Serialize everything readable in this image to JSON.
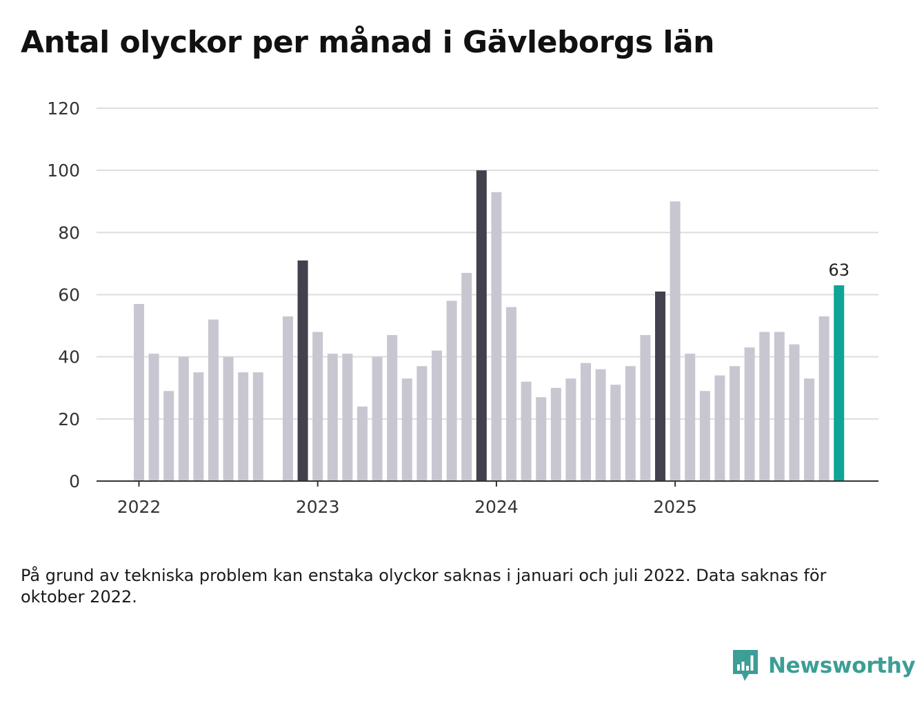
{
  "title": "Antal olyckor per månad i Gävleborgs län",
  "note": "På grund av tekniska problem kan enstaka olyckor saknas i januari och juli 2022. Data saknas för oktober 2022.",
  "brand": {
    "name": "Newsworthy",
    "icon": "newsworthy-logo-icon",
    "color": "#3c9e95"
  },
  "colors": {
    "bar": "#c8c7d1",
    "december": "#42414d",
    "latest": "#0fa596",
    "grid": "#dddddd",
    "axis": "#333333"
  },
  "chart_data": {
    "type": "bar",
    "title": "Antal olyckor per månad i Gävleborgs län",
    "xlabel": "",
    "ylabel": "",
    "ylim": [
      0,
      120
    ],
    "yticks": [
      "0",
      "20",
      "40",
      "60",
      "80",
      "100",
      "120"
    ],
    "x_tick_labels": [
      {
        "label": "2022",
        "index": 0
      },
      {
        "label": "2023",
        "index": 12
      },
      {
        "label": "2024",
        "index": 24
      },
      {
        "label": "2025",
        "index": 36
      }
    ],
    "highlight_label": "63",
    "categories": [
      "2022-01",
      "2022-02",
      "2022-03",
      "2022-04",
      "2022-05",
      "2022-06",
      "2022-07",
      "2022-08",
      "2022-09",
      "2022-10",
      "2022-11",
      "2022-12",
      "2023-01",
      "2023-02",
      "2023-03",
      "2023-04",
      "2023-05",
      "2023-06",
      "2023-07",
      "2023-08",
      "2023-09",
      "2023-10",
      "2023-11",
      "2023-12",
      "2024-01",
      "2024-02",
      "2024-03",
      "2024-04",
      "2024-05",
      "2024-06",
      "2024-07",
      "2024-08",
      "2024-09",
      "2024-10",
      "2024-11",
      "2024-12",
      "2025-01",
      "2025-02",
      "2025-03",
      "2025-04",
      "2025-05",
      "2025-06",
      "2025-07",
      "2025-08",
      "2025-09",
      "2025-10",
      "2025-11",
      "2025-12"
    ],
    "values": [
      57,
      41,
      29,
      40,
      35,
      52,
      40,
      35,
      35,
      null,
      53,
      71,
      48,
      41,
      41,
      24,
      40,
      47,
      33,
      37,
      42,
      58,
      67,
      100,
      93,
      56,
      32,
      27,
      30,
      33,
      38,
      36,
      31,
      37,
      47,
      61,
      90,
      41,
      29,
      34,
      37,
      43,
      48,
      48,
      44,
      33,
      53,
      63
    ],
    "highlight": {
      "dark_months": [
        "2022-12",
        "2023-12",
        "2024-12"
      ],
      "latest": "2025-12"
    }
  }
}
